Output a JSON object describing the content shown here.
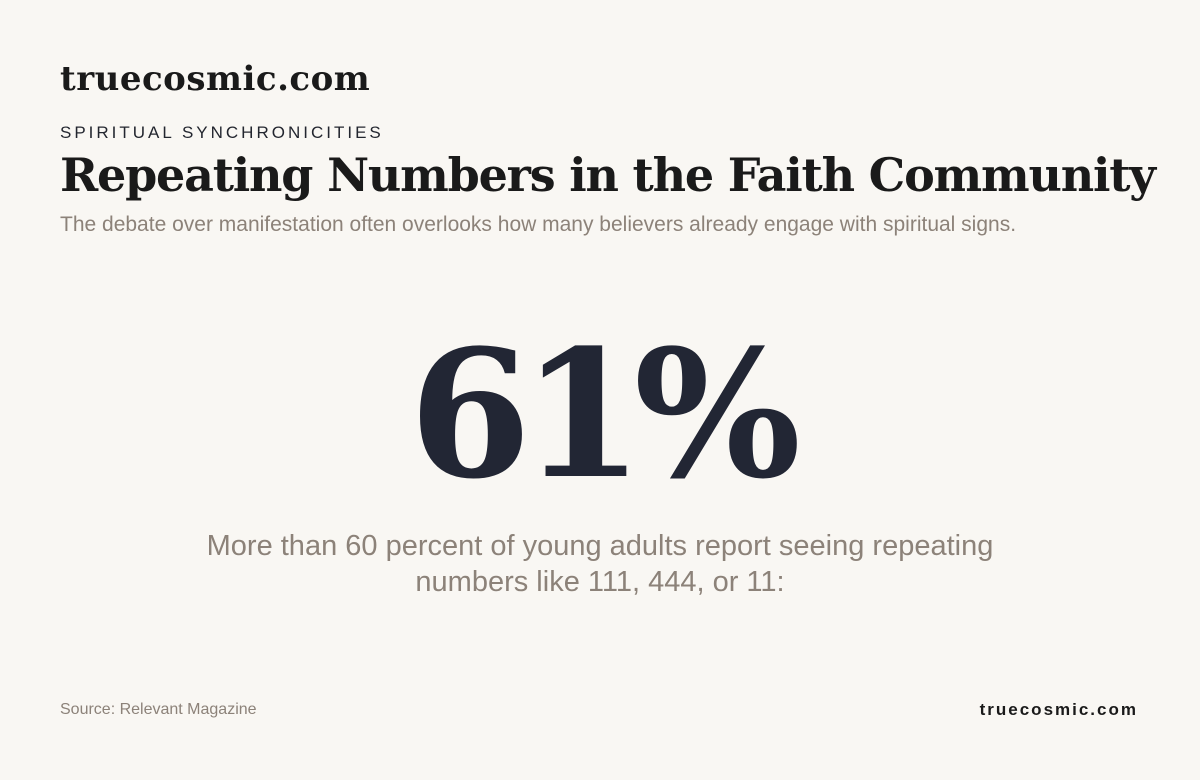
{
  "header": {
    "brand": "truecosmic.com",
    "kicker": "SPIRITUAL SYNCHRONICITIES",
    "title": "Repeating Numbers in the Faith Community",
    "subtitle": "The debate over manifestation often overlooks how many believers already engage with spiritual signs."
  },
  "stat": {
    "value": "61%",
    "description": "More than 60 percent of young adults report seeing repeating numbers like 111, 444, or 11:"
  },
  "footer": {
    "source": "Source: Relevant Magazine",
    "brand": "truecosmic.com"
  },
  "colors": {
    "background": "#f9f7f3",
    "text_dark": "#1a1a1a",
    "stat_navy": "#222634",
    "muted_taupe": "#8c8279"
  }
}
